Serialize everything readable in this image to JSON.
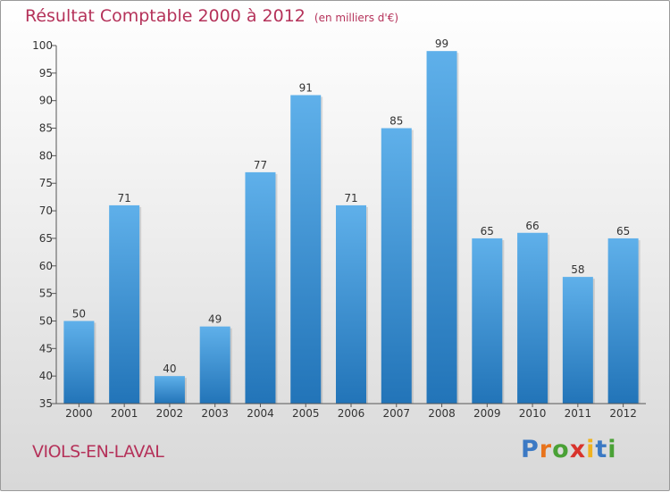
{
  "title": "Résultat Comptable 2000 à 2012",
  "unit": "(en milliers d'€)",
  "location": "VIOLS-EN-LAVAL",
  "logo": {
    "text": "Proxiti",
    "letter_colors": [
      "#3b79c4",
      "#e8731c",
      "#4aa136",
      "#d8332c",
      "#f0b21f",
      "#3b79c4",
      "#4aa136"
    ]
  },
  "colors": {
    "bar_top": "#5fb0ea",
    "bar_bottom": "#2274b8",
    "title": "#b5325a",
    "axis_text": "#333333"
  },
  "chart_data": {
    "type": "bar",
    "categories": [
      "2000",
      "2001",
      "2002",
      "2003",
      "2004",
      "2005",
      "2006",
      "2007",
      "2008",
      "2009",
      "2010",
      "2011",
      "2012"
    ],
    "values": [
      50,
      71,
      40,
      49,
      77,
      91,
      71,
      85,
      99,
      65,
      66,
      58,
      65
    ],
    "data_labels": [
      "50",
      "71",
      "40",
      "49",
      "77",
      "91",
      "71",
      "85",
      "99",
      "65",
      "66",
      "58",
      "65"
    ],
    "ylim": [
      35,
      100
    ],
    "yticks": [
      35,
      40,
      45,
      50,
      55,
      60,
      65,
      70,
      75,
      80,
      85,
      90,
      95,
      100
    ],
    "ytick_labels": [
      "35",
      "40",
      "45",
      "50",
      "55",
      "60",
      "65",
      "70",
      "75",
      "80",
      "85",
      "90",
      "95",
      "100"
    ],
    "grid": false,
    "xlabel": "",
    "ylabel": ""
  }
}
